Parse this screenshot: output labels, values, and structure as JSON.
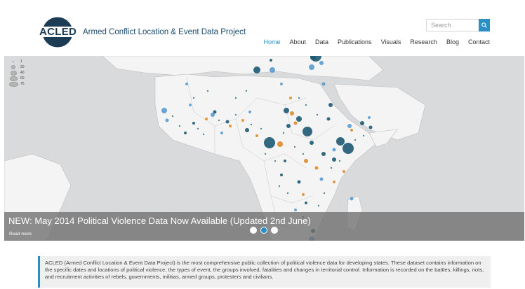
{
  "header": {
    "logo_text": "ACLED",
    "tagline": "Armed Conflict Location & Event Data Project",
    "search_placeholder": "Search",
    "nav": [
      {
        "label": "Home",
        "active": true
      },
      {
        "label": "About"
      },
      {
        "label": "Data"
      },
      {
        "label": "Publications"
      },
      {
        "label": "Visuals"
      },
      {
        "label": "Research"
      },
      {
        "label": "Blog"
      },
      {
        "label": "Contact"
      }
    ]
  },
  "slider": {
    "legend": [
      "1",
      "20",
      "40",
      "60",
      "75"
    ],
    "caption_title": "NEW: May 2014 Political Violence Data Now Available (Updated 2nd June)",
    "read_more": "Read more",
    "slides_count": 3,
    "active_slide": 2
  },
  "intro": {
    "text": "ACLED (Armed Conflict Location & Event Data Project) is the most comprehensive public collection of political violence data for developing states. These dataset contains information on the specific dates and locations of political violence, the types of event, the groups involved, fatalities and changes in territorial control. Information is recorded on the battles, killings, riots, and recruitment activities of rebels, governments, militias, armed groups, protesters and civilians."
  },
  "colors": {
    "accent": "#2a8fc4",
    "dark_dot": "#1d5a73",
    "orange_dot": "#e08a2a",
    "light_blue_dot": "#4f97cf",
    "land": "#f2f2f2",
    "sea": "#d9dadb"
  }
}
